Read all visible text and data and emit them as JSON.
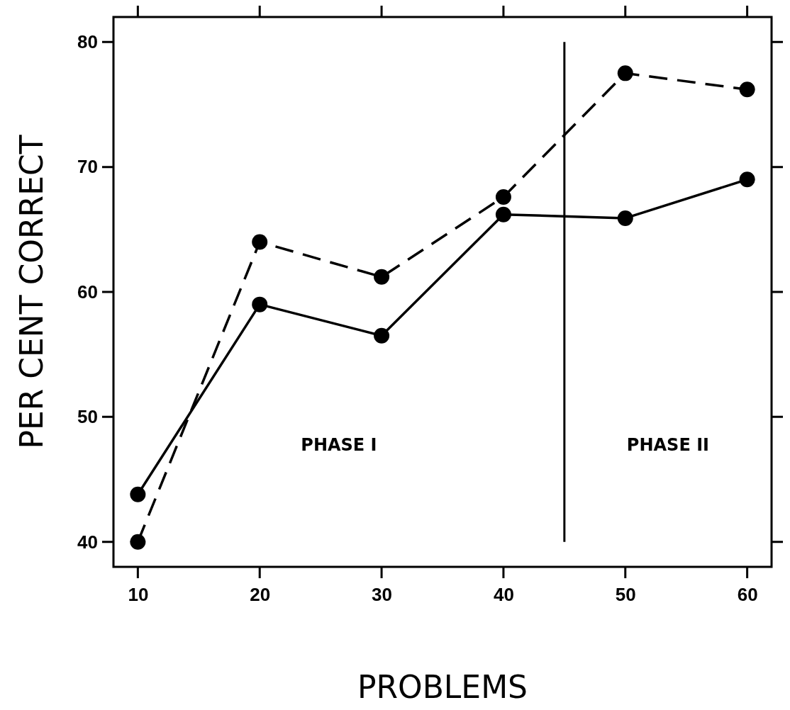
{
  "chart_data": {
    "type": "line",
    "xlabel": "PROBLEMS",
    "ylabel": "PER CENT CORRECT",
    "x": [
      10,
      20,
      30,
      40,
      50,
      60
    ],
    "series": [
      {
        "color": "#000000",
        "line_style": "solid",
        "values": [
          43.8,
          59,
          56.5,
          66.2,
          65.9,
          69
        ]
      },
      {
        "color": "#000000",
        "line_style": "dashed",
        "values": [
          40,
          64,
          61.2,
          67.6,
          77.5,
          76.2
        ]
      }
    ],
    "xlim": [
      8,
      62
    ],
    "xticks": [
      10,
      20,
      30,
      40,
      50,
      60
    ],
    "ylim": [
      38,
      82
    ],
    "yticks": [
      40,
      50,
      60,
      70,
      80
    ],
    "marker": "circle",
    "grid": false,
    "ref_lines": [
      {
        "axis": "x",
        "value": 45,
        "color": "#000000"
      }
    ],
    "annotations": [
      "PHASE I",
      "PHASE II"
    ]
  }
}
